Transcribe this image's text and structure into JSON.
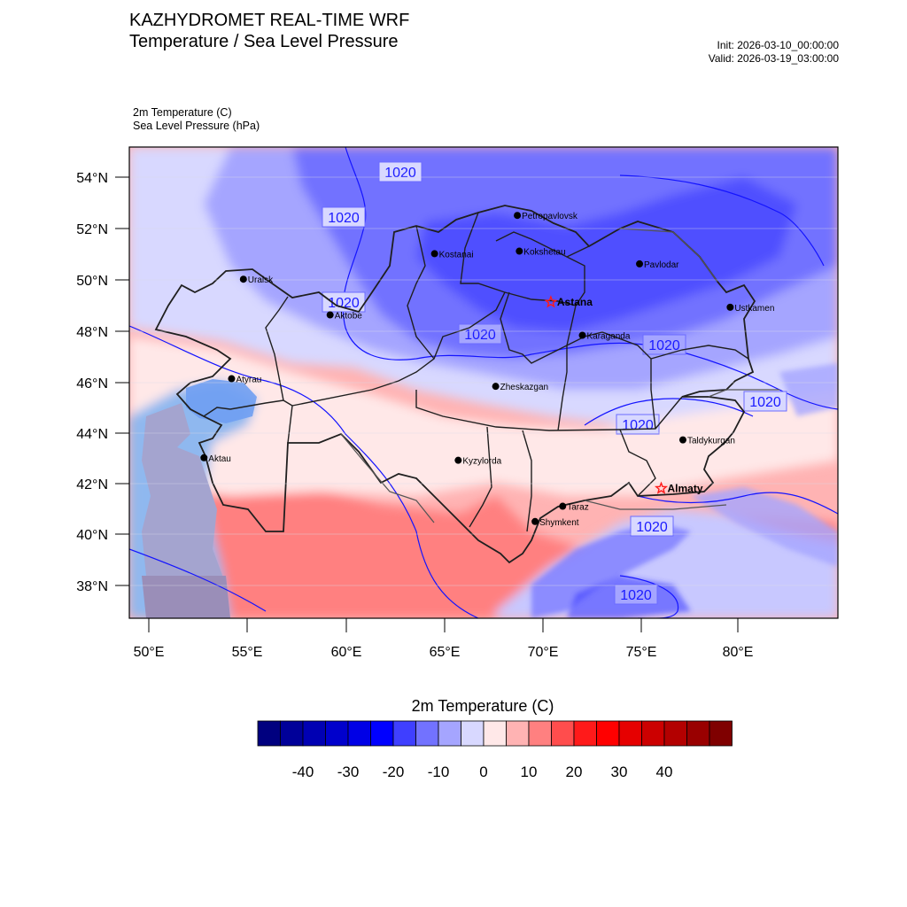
{
  "header": {
    "title_line1": "KAZHYDROMET REAL-TIME WRF",
    "title_line2": "Temperature / Sea Level Pressure",
    "init": "Init: 2026-03-10_00:00:00",
    "valid": "Valid: 2026-03-19_03:00:00",
    "field1": "2m Temperature   (C)",
    "field2": "Sea Level Pressure   (hPa)"
  },
  "axes": {
    "lat_labels": [
      "54°N",
      "52°N",
      "50°N",
      "48°N",
      "46°N",
      "44°N",
      "42°N",
      "40°N",
      "38°N"
    ],
    "lon_labels": [
      "50°E",
      "55°E",
      "60°E",
      "65°E",
      "70°E",
      "75°E",
      "80°E"
    ]
  },
  "cities": [
    {
      "name": "Petropavlovsk",
      "lon": 68.7,
      "lat": 52.5
    },
    {
      "name": "Kostanai",
      "lon": 64.5,
      "lat": 51.0
    },
    {
      "name": "Kokshetau",
      "lon": 68.8,
      "lat": 51.1
    },
    {
      "name": "Pavlodar",
      "lon": 74.9,
      "lat": 50.6
    },
    {
      "name": "Uralsk",
      "lon": 54.8,
      "lat": 50.0
    },
    {
      "name": "Aktobe",
      "lon": 59.2,
      "lat": 48.6
    },
    {
      "name": "Astana",
      "lon": 70.4,
      "lat": 49.1,
      "capital": true
    },
    {
      "name": "Ustkamen",
      "lon": 79.5,
      "lat": 48.9
    },
    {
      "name": "Karaganda",
      "lon": 72.0,
      "lat": 47.8
    },
    {
      "name": "Atyrau",
      "lon": 54.2,
      "lat": 46.1
    },
    {
      "name": "Zheskazgan",
      "lon": 67.6,
      "lat": 45.8
    },
    {
      "name": "Taldykurgan",
      "lon": 77.1,
      "lat": 43.7
    },
    {
      "name": "Aktau",
      "lon": 52.8,
      "lat": 43.0
    },
    {
      "name": "Kyzylorda",
      "lon": 65.7,
      "lat": 42.9
    },
    {
      "name": "Almaty",
      "lon": 76.0,
      "lat": 41.8,
      "capital": true
    },
    {
      "name": "Taraz",
      "lon": 71.0,
      "lat": 41.1
    },
    {
      "name": "Shymkent",
      "lon": 69.6,
      "lat": 40.5
    }
  ],
  "isobar_labels": [
    "1020",
    "1020",
    "1020",
    "1020",
    "1020",
    "1020",
    "1020",
    "1020",
    "1020"
  ],
  "colorbar": {
    "title": "2m Temperature  (C)",
    "ticks": [
      "-40",
      "-30",
      "-20",
      "-10",
      "0",
      "10",
      "20",
      "30",
      "40"
    ],
    "colors": [
      "#00007f",
      "#000099",
      "#0000b3",
      "#0000cc",
      "#0000e6",
      "#0000ff",
      "#3f3fff",
      "#7272ff",
      "#a5a5ff",
      "#d8d8ff",
      "#ffe8e8",
      "#ffb3b3",
      "#ff8080",
      "#ff4d4d",
      "#ff1a1a",
      "#ff0000",
      "#e60000",
      "#cc0000",
      "#b30000",
      "#990000",
      "#7f0000"
    ]
  }
}
